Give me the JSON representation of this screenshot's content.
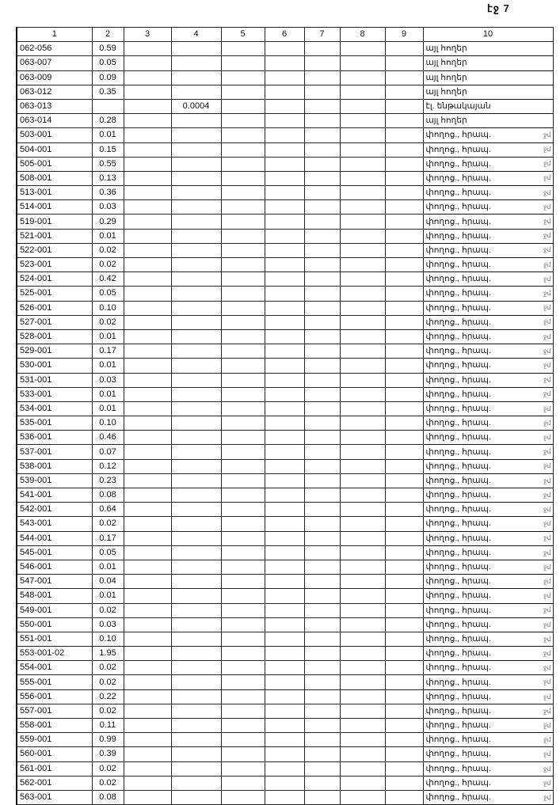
{
  "page_label": "էջ 7",
  "columns": [
    "1",
    "2",
    "3",
    "4",
    "5",
    "6",
    "7",
    "8",
    "9",
    "10"
  ],
  "rows": [
    {
      "c1": "062-056",
      "c2": "0.59",
      "c4": "",
      "c10": "այլ հողեր",
      "mark": ""
    },
    {
      "c1": "063-007",
      "c2": "0.05",
      "c4": "",
      "c10": "այլ հողեր",
      "mark": ""
    },
    {
      "c1": "063-009",
      "c2": "0.09",
      "c4": "",
      "c10": "այլ հողեր",
      "mark": ""
    },
    {
      "c1": "063-012",
      "c2": "0.35",
      "c4": "",
      "c10": "այլ հողեր",
      "mark": ""
    },
    {
      "c1": "063-013",
      "c2": "",
      "c4": "0.0004",
      "c10": "էլ. ենթակայան",
      "mark": ""
    },
    {
      "c1": "063-014",
      "c2": "0.28",
      "c4": "",
      "c10": "այլ հողեր",
      "mark": ""
    },
    {
      "c1": "503-001",
      "c2": "0.01",
      "c4": "",
      "c10": "փողոց., հրապ.",
      "mark": "ջմ"
    },
    {
      "c1": "504-001",
      "c2": "0.15",
      "c4": "",
      "c10": "փողոց., հրապ.",
      "mark": "ջմ"
    },
    {
      "c1": "505-001",
      "c2": "0.55",
      "c4": "",
      "c10": "փողոց., հրապ.",
      "mark": "ջմ"
    },
    {
      "c1": "508-001",
      "c2": "0.13",
      "c4": "",
      "c10": "փողոց., հրապ.",
      "mark": "ջմ"
    },
    {
      "c1": "513-001",
      "c2": "0.36",
      "c4": "",
      "c10": "փողոց., հրապ.",
      "mark": "ջմ"
    },
    {
      "c1": "514-001",
      "c2": "0.03",
      "c4": "",
      "c10": "փողոց., հրապ.",
      "mark": "ջմ"
    },
    {
      "c1": "519-001",
      "c2": "0.29",
      "c4": "",
      "c10": "փողոց., հրապ.",
      "mark": "ջմ"
    },
    {
      "c1": "521-001",
      "c2": "0.01",
      "c4": "",
      "c10": "փողոց., հրապ.",
      "mark": "ջմ"
    },
    {
      "c1": "522-001",
      "c2": "0.02",
      "c4": "",
      "c10": "փողոց., հրապ.",
      "mark": "ջմ"
    },
    {
      "c1": "523-001",
      "c2": "0.02",
      "c4": "",
      "c10": "փողոց., հրապ.",
      "mark": "ջմ"
    },
    {
      "c1": "524-001",
      "c2": "0.42",
      "c4": "",
      "c10": "փողոց., հրապ.",
      "mark": "ջմ"
    },
    {
      "c1": "525-001",
      "c2": "0.05",
      "c4": "",
      "c10": "փողոց., հրապ.",
      "mark": "ջմ"
    },
    {
      "c1": "526-001",
      "c2": "0.10",
      "c4": "",
      "c10": "փողոց., հրապ.",
      "mark": "ջմ"
    },
    {
      "c1": "527-001",
      "c2": "0.02",
      "c4": "",
      "c10": "փողոց., հրապ.",
      "mark": "ջմ"
    },
    {
      "c1": "528-001",
      "c2": "0.01",
      "c4": "",
      "c10": "փողոց., հրապ.",
      "mark": "ջմ"
    },
    {
      "c1": "529-001",
      "c2": "0.17",
      "c4": "",
      "c10": "փողոց., հրապ.",
      "mark": "ջմ"
    },
    {
      "c1": "530-001",
      "c2": "0.01",
      "c4": "",
      "c10": "փողոց., հրապ.",
      "mark": "ջմ"
    },
    {
      "c1": "531-001",
      "c2": "0.03",
      "c4": "",
      "c10": "փողոց., հրապ.",
      "mark": "ջմ"
    },
    {
      "c1": "533-001",
      "c2": "0.01",
      "c4": "",
      "c10": "փողոց., հրապ.",
      "mark": "ջմ"
    },
    {
      "c1": "534-001",
      "c2": "0.01",
      "c4": "",
      "c10": "փողոց., հրապ.",
      "mark": "ջմ"
    },
    {
      "c1": "535-001",
      "c2": "0.10",
      "c4": "",
      "c10": "փողոց., հրապ.",
      "mark": "ջմ"
    },
    {
      "c1": "536-001",
      "c2": "0.46",
      "c4": "",
      "c10": "փողոց., հրապ.",
      "mark": "ջմ"
    },
    {
      "c1": "537-001",
      "c2": "0.07",
      "c4": "",
      "c10": "փողոց., հրապ.",
      "mark": "ջմ"
    },
    {
      "c1": "538-001",
      "c2": "0.12",
      "c4": "",
      "c10": "փողոց., հրապ.",
      "mark": "ջմ"
    },
    {
      "c1": "539-001",
      "c2": "0.23",
      "c4": "",
      "c10": "փողոց., հրապ.",
      "mark": "ջմ"
    },
    {
      "c1": "541-001",
      "c2": "0.08",
      "c4": "",
      "c10": "փողոց., հրապ.",
      "mark": "ջմ"
    },
    {
      "c1": "542-001",
      "c2": "0.64",
      "c4": "",
      "c10": "փողոց., հրապ.",
      "mark": "ջմ"
    },
    {
      "c1": "543-001",
      "c2": "0.02",
      "c4": "",
      "c10": "փողոց., հրապ.",
      "mark": "ջմ"
    },
    {
      "c1": "544-001",
      "c2": "0.17",
      "c4": "",
      "c10": "փողոց., հրապ.",
      "mark": "ջմ"
    },
    {
      "c1": "545-001",
      "c2": "0.05",
      "c4": "",
      "c10": "փողոց., հրապ.",
      "mark": "ջմ"
    },
    {
      "c1": "546-001",
      "c2": "0.01",
      "c4": "",
      "c10": "փողոց., հրապ.",
      "mark": "ջմ"
    },
    {
      "c1": "547-001",
      "c2": "0.04",
      "c4": "",
      "c10": "փողոց., հրապ.",
      "mark": "ջմ"
    },
    {
      "c1": "548-001",
      "c2": "0.01",
      "c4": "",
      "c10": "փողոց., հրապ.",
      "mark": "ջմ"
    },
    {
      "c1": "549-001",
      "c2": "0.02",
      "c4": "",
      "c10": "փողոց., հրապ.",
      "mark": "ջմ"
    },
    {
      "c1": "550-001",
      "c2": "0.03",
      "c4": "",
      "c10": "փողոց., հրապ.",
      "mark": "ջմ"
    },
    {
      "c1": "551-001",
      "c2": "0.10",
      "c4": "",
      "c10": "փողոց., հրապ.",
      "mark": "ջմ"
    },
    {
      "c1": "553-001-02",
      "c2": "1.95",
      "c4": "",
      "c10": "փողոց., հրապ.",
      "mark": "ջմ"
    },
    {
      "c1": "554-001",
      "c2": "0.02",
      "c4": "",
      "c10": "փողոց., հրապ.",
      "mark": "ջմ"
    },
    {
      "c1": "555-001",
      "c2": "0.02",
      "c4": "",
      "c10": "փողոց., հրապ.",
      "mark": "ջմ"
    },
    {
      "c1": "556-001",
      "c2": "0.22",
      "c4": "",
      "c10": "փողոց., հրապ.",
      "mark": "ջմ"
    },
    {
      "c1": "557-001",
      "c2": "0.02",
      "c4": "",
      "c10": "փողոց., հրապ.",
      "mark": "ջմ"
    },
    {
      "c1": "558-001",
      "c2": "0.11",
      "c4": "",
      "c10": "փողոց., հրապ.",
      "mark": "ջմ"
    },
    {
      "c1": "559-001",
      "c2": "0.99",
      "c4": "",
      "c10": "փողոց., հրապ.",
      "mark": "ջմ"
    },
    {
      "c1": "560-001",
      "c2": "0.39",
      "c4": "",
      "c10": "փողոց., հրապ.",
      "mark": "ջմ"
    },
    {
      "c1": "561-001",
      "c2": "0.02",
      "c4": "",
      "c10": "փողոց., հրապ.",
      "mark": "ջմ"
    },
    {
      "c1": "562-001",
      "c2": "0.02",
      "c4": "",
      "c10": "փողոց., հրապ.",
      "mark": "ջմ"
    },
    {
      "c1": "563-001",
      "c2": "0.08",
      "c4": "",
      "c10": "փողոց., հրապ.",
      "mark": "ջմ"
    }
  ]
}
